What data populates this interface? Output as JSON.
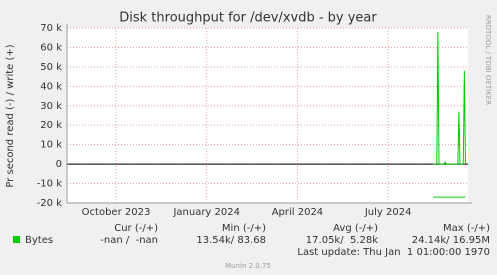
{
  "chart_data": {
    "type": "line",
    "title": "Disk throughput for /dev/xvdb - by year",
    "y_label": "Pr second read (-) / write (+)",
    "side_label": "RRDTOOL / TOBI OETIKER",
    "grid": true,
    "xlim": [
      2023.615,
      2024.72
    ],
    "xticks": [
      {
        "value": 2023.75,
        "label": "October 2023"
      },
      {
        "value": 2024.0,
        "label": "January 2024"
      },
      {
        "value": 2024.25,
        "label": "April 2024"
      },
      {
        "value": 2024.5,
        "label": "July 2024"
      }
    ],
    "ylim": [
      -20000,
      70000
    ],
    "yticks": [
      {
        "value": -20000,
        "label": "-20 k"
      },
      {
        "value": -10000,
        "label": "-10 k"
      },
      0,
      {
        "value": 10000,
        "label": "10 k"
      },
      {
        "value": 20000,
        "label": "20 k"
      },
      {
        "value": 30000,
        "label": "30 k"
      },
      {
        "value": 40000,
        "label": "40 k"
      },
      {
        "value": 50000,
        "label": "50 k"
      },
      {
        "value": 60000,
        "label": "60 k"
      },
      {
        "value": 70000,
        "label": "70 k"
      }
    ],
    "series": [
      {
        "name": "Bytes",
        "color": "#00cc00",
        "x": [
          2024.624,
          2024.634,
          2024.637,
          2024.64,
          2024.654,
          2024.657,
          2024.66,
          2024.692,
          2024.695,
          2024.698,
          2024.707,
          2024.71,
          2024.713
        ],
        "values": [
          0,
          0,
          68000,
          0,
          0,
          1000,
          0,
          0,
          27000,
          0,
          0,
          48000,
          0
        ]
      },
      {
        "color": "#00cc00",
        "x": [
          2024.624,
          2024.713
        ],
        "values": [
          -17000,
          -17000
        ]
      }
    ],
    "legend_table": {
      "headers": [
        "Cur (-/+)",
        "Min (-/+)",
        "Avg (-/+)",
        "Max (-/+)"
      ],
      "rows": [
        {
          "label": "Bytes",
          "cells": [
            "-nan /  -nan",
            "13.54k/ 83.68",
            "17.05k/  5.28k",
            "24.14k/ 16.95M"
          ]
        }
      ],
      "last_update": "Last update: Thu Jan  1 01:00:00 1970"
    },
    "footer": "Munin 2.0.75"
  }
}
